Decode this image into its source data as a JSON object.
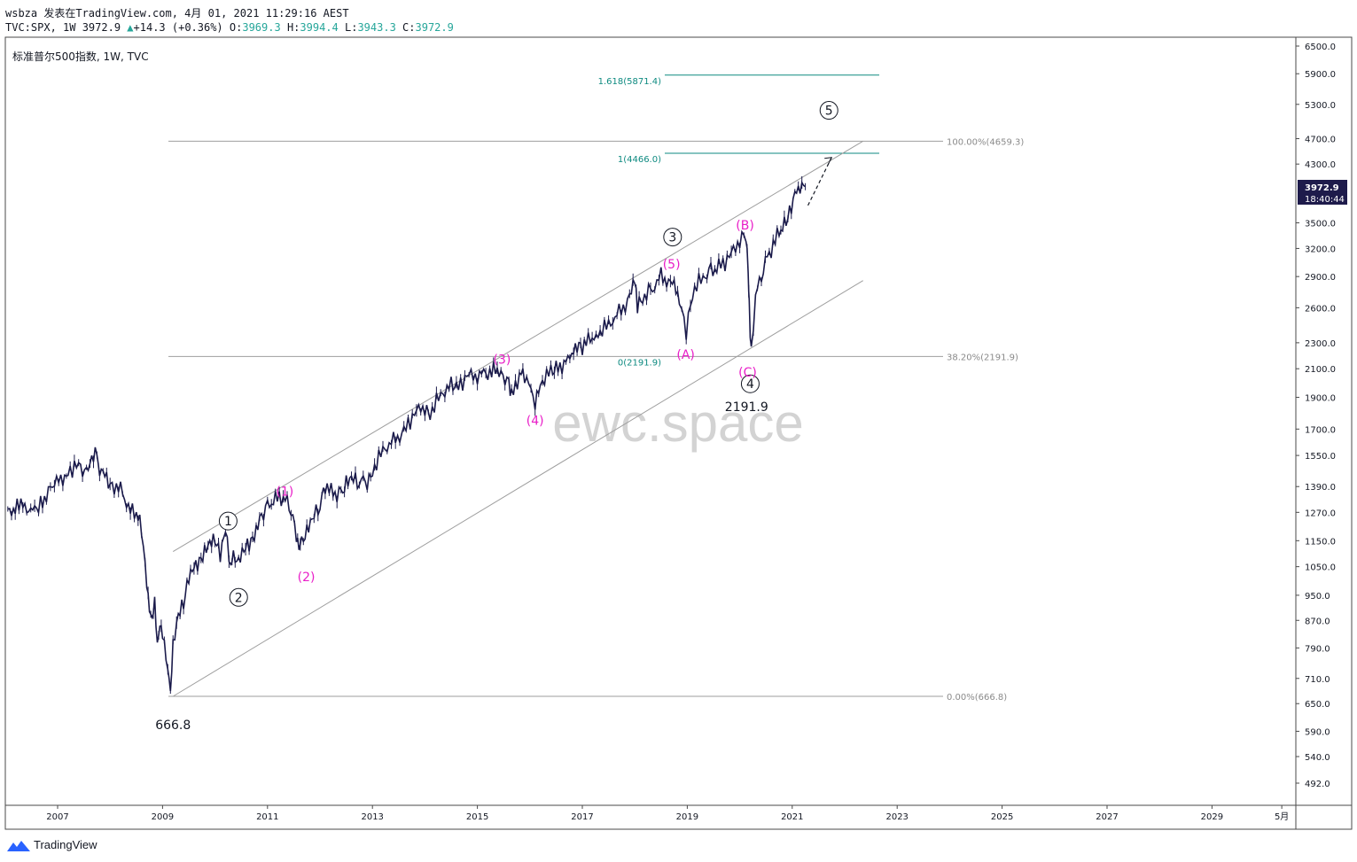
{
  "header": {
    "line1": "wsbza 发表在TradingView.com, 4月 01, 2021 11:29:16 AEST",
    "symbol": "TVC:SPX, 1W 3972.9",
    "change_arrow": "▲",
    "change": "+14.3 (+0.36%)",
    "o_label": "O:",
    "o": "3969.3",
    "h_label": "H:",
    "h": "3994.4",
    "l_label": "L:",
    "l": "3943.3",
    "c_label": "C:",
    "c": "3972.9"
  },
  "legend": "标准普尔500指数, 1W, TVC",
  "watermark": "ewc.space",
  "footer": {
    "brand": "TradingView"
  },
  "price_tag": {
    "price": "3972.9",
    "countdown": "18:40:44",
    "color": "#1e1b4b"
  },
  "colors": {
    "candle": "#1b1b4b",
    "wave_minor": "#e91ec8",
    "fib": "#0d8a80",
    "line": "#9e9e9e",
    "text": "#131722"
  },
  "chart_data": {
    "type": "line",
    "title": "",
    "xlabel": "",
    "ylabel": "",
    "y_scale": "log",
    "ylim": [
      450,
      6600
    ],
    "xlim": [
      2006.05,
      2030.6
    ],
    "x_ticks": [
      {
        "label": "2007",
        "x": 2007.0
      },
      {
        "label": "2009",
        "x": 2009.0
      },
      {
        "label": "2011",
        "x": 2011.0
      },
      {
        "label": "2013",
        "x": 2013.0
      },
      {
        "label": "2015",
        "x": 2015.0
      },
      {
        "label": "2017",
        "x": 2017.0
      },
      {
        "label": "2019",
        "x": 2019.0
      },
      {
        "label": "2021",
        "x": 2021.0
      },
      {
        "label": "2023",
        "x": 2023.0
      },
      {
        "label": "2025",
        "x": 2025.0
      },
      {
        "label": "2027",
        "x": 2027.0
      },
      {
        "label": "2029",
        "x": 2029.0
      },
      {
        "label": "5月",
        "x": 2030.33
      }
    ],
    "y_ticks": [
      "6500.0",
      "5900.0",
      "5300.0",
      "4700.0",
      "4300.0",
      "3500.0",
      "3200.0",
      "2900.0",
      "2600.0",
      "2300.0",
      "2100.0",
      "1900.0",
      "1700.0",
      "1550.0",
      "1390.0",
      "1270.0",
      "1150.0",
      "1050.0",
      "950.0",
      "870.0",
      "790.0",
      "710.0",
      "650.0",
      "590.0",
      "540.0",
      "492.0"
    ],
    "series": [
      {
        "x": [
          2006.05,
          2006.3,
          2006.6,
          2006.9,
          2007.1,
          2007.2,
          2007.4,
          2007.55,
          2007.65,
          2007.75,
          2007.8,
          2007.9,
          2008.0,
          2008.2,
          2008.35,
          2008.5,
          2008.6,
          2008.7,
          2008.75,
          2008.8,
          2008.85,
          2008.9,
          2008.95,
          2009.0,
          2009.1,
          2009.15,
          2009.2,
          2009.3,
          2009.4,
          2009.5,
          2009.6,
          2009.7,
          2009.8,
          2009.9,
          2010.0,
          2010.1,
          2010.2,
          2010.3,
          2010.35,
          2010.45,
          2010.55,
          2010.65,
          2010.75,
          2010.85,
          2011.0,
          2011.15,
          2011.3,
          2011.45,
          2011.55,
          2011.6,
          2011.65,
          2011.75,
          2011.85,
          2012.0,
          2012.1,
          2012.25,
          2012.4,
          2012.5,
          2012.6,
          2012.75,
          2012.9,
          2013.0,
          2013.2,
          2013.4,
          2013.6,
          2013.8,
          2014.0,
          2014.1,
          2014.3,
          2014.5,
          2014.6,
          2014.8,
          2015.0,
          2015.2,
          2015.45,
          2015.6,
          2015.65,
          2015.8,
          2015.9,
          2016.1,
          2016.2,
          2016.4,
          2016.5,
          2016.8,
          2016.9,
          2017.0,
          2017.3,
          2017.5,
          2017.7,
          2017.9,
          2018.0,
          2018.05,
          2018.15,
          2018.3,
          2018.5,
          2018.75,
          2018.85,
          2018.98,
          2019.1,
          2019.3,
          2019.45,
          2019.6,
          2019.8,
          2020.0,
          2020.12,
          2020.16,
          2020.18,
          2020.22,
          2020.3,
          2020.45,
          2020.6,
          2020.75,
          2020.85,
          2020.95,
          2021.05,
          2021.15,
          2021.25
        ],
        "y": [
          1270,
          1300,
          1270,
          1400,
          1430,
          1470,
          1500,
          1450,
          1520,
          1560,
          1480,
          1470,
          1400,
          1380,
          1280,
          1270,
          1200,
          1000,
          900,
          860,
          920,
          800,
          870,
          840,
          740,
          667,
          790,
          880,
          920,
          1020,
          1060,
          1070,
          1100,
          1130,
          1150,
          1100,
          1210,
          1050,
          1080,
          1060,
          1110,
          1140,
          1180,
          1250,
          1290,
          1330,
          1340,
          1290,
          1180,
          1120,
          1140,
          1180,
          1230,
          1310,
          1400,
          1360,
          1350,
          1400,
          1420,
          1420,
          1420,
          1470,
          1580,
          1630,
          1680,
          1800,
          1840,
          1800,
          1920,
          1980,
          1950,
          2050,
          2050,
          2080,
          2090,
          1970,
          1900,
          2060,
          2050,
          1880,
          2000,
          2080,
          2090,
          2190,
          2270,
          2280,
          2380,
          2450,
          2550,
          2680,
          2870,
          2640,
          2700,
          2750,
          2900,
          2800,
          2650,
          2400,
          2750,
          2900,
          2950,
          3000,
          3100,
          3300,
          3380,
          2950,
          2600,
          2200,
          2700,
          3000,
          3200,
          3380,
          3500,
          3600,
          3850,
          3950,
          3973
        ]
      }
    ],
    "annotations": {
      "wave_major": [
        {
          "label": "1",
          "x": 2010.25,
          "y": 1232
        },
        {
          "label": "2",
          "x": 2010.45,
          "y": 943
        },
        {
          "label": "3",
          "x": 2018.72,
          "y": 3330
        },
        {
          "label": "4",
          "x": 2020.2,
          "y": 1992
        },
        {
          "label": "5",
          "x": 2021.7,
          "y": 5190
        }
      ],
      "wave_minor": [
        {
          "label": "(1)",
          "x": 2011.33,
          "y": 1368
        },
        {
          "label": "(2)",
          "x": 2011.74,
          "y": 1014
        },
        {
          "label": "(3)",
          "x": 2015.47,
          "y": 2172
        },
        {
          "label": "(4)",
          "x": 2016.1,
          "y": 1753
        },
        {
          "label": "(5)",
          "x": 2018.7,
          "y": 3030
        },
        {
          "label": "(A)",
          "x": 2018.97,
          "y": 2209
        },
        {
          "label": "(B)",
          "x": 2020.1,
          "y": 3475
        },
        {
          "label": "(C)",
          "x": 2020.15,
          "y": 2077
        }
      ],
      "price_labels": [
        {
          "label": "666.8",
          "x": 2009.2,
          "y": 604
        },
        {
          "label": "2191.9",
          "x": 2020.13,
          "y": 1840
        }
      ],
      "fib_retracement": [
        {
          "label": "100.00%(4659.3)",
          "y": 4659.3
        },
        {
          "label": "38.20%(2191.9)",
          "y": 2191.9
        },
        {
          "label": "0.00%(666.8)",
          "y": 666.8
        }
      ],
      "fib_extension": [
        {
          "label": "1.618(5871.4)",
          "y": 5871.4
        },
        {
          "label": "1(4466.0)",
          "y": 4466.0
        },
        {
          "label": "0(2191.9)",
          "y": 2191.9
        }
      ],
      "channel": {
        "upper": [
          [
            2009.2,
            1107
          ],
          [
            2022.35,
            4659
          ]
        ],
        "lower": [
          [
            2009.2,
            666.8
          ],
          [
            2022.35,
            2860
          ]
        ]
      },
      "projection": {
        "from": [
          2021.3,
          3720
        ],
        "to": [
          2021.75,
          4400
        ]
      }
    }
  }
}
